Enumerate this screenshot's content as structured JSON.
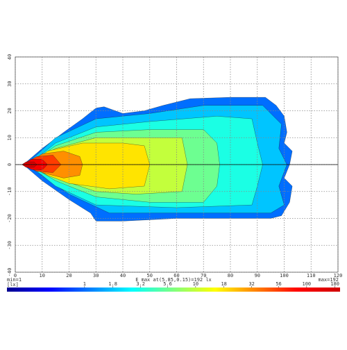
{
  "chart_data": {
    "type": "contour",
    "xlim": [
      0,
      120
    ],
    "ylim": [
      -40,
      40
    ],
    "xticks": [
      0,
      10,
      20,
      30,
      40,
      50,
      60,
      70,
      80,
      90,
      100,
      110,
      120
    ],
    "yticks": [
      -40,
      -30,
      -20,
      -10,
      0,
      10,
      20,
      30,
      40
    ],
    "grid": true,
    "min_label": "min=1",
    "unit_label": "[lx]",
    "emax_label": "E max at(5.85,0.15)=192 lx",
    "max_label": "max=192",
    "colorbar": {
      "scale": "log",
      "lim": [
        0.2,
        200
      ],
      "ticks": [
        1,
        1.8,
        3.2,
        5.6,
        10,
        18,
        32,
        56,
        100,
        180
      ],
      "colormap": [
        "#00008f",
        "#0000ff",
        "#007fff",
        "#00ffff",
        "#7fff7f",
        "#ffff00",
        "#ff7f00",
        "#ff0000",
        "#cf0000"
      ]
    },
    "contours": [
      {
        "level": 1,
        "points": [
          [
            3,
            0
          ],
          [
            10,
            6
          ],
          [
            18,
            12
          ],
          [
            25,
            17
          ],
          [
            30,
            21
          ],
          [
            33,
            21.5
          ],
          [
            40,
            19
          ],
          [
            48,
            20
          ],
          [
            55,
            22
          ],
          [
            65,
            24.5
          ],
          [
            80,
            25
          ],
          [
            93,
            25
          ],
          [
            97,
            22
          ],
          [
            100,
            18
          ],
          [
            101,
            12
          ],
          [
            100,
            8
          ],
          [
            103,
            5
          ],
          [
            102,
            0
          ],
          [
            100,
            -5
          ],
          [
            103,
            -8
          ],
          [
            102,
            -14
          ],
          [
            99,
            -19
          ],
          [
            95,
            -20
          ],
          [
            80,
            -20
          ],
          [
            60,
            -20
          ],
          [
            40,
            -21
          ],
          [
            30,
            -21
          ],
          [
            28,
            -18
          ],
          [
            20,
            -13
          ],
          [
            10,
            -6
          ]
        ]
      },
      {
        "level": 1.8,
        "points": [
          [
            4,
            0
          ],
          [
            15,
            10
          ],
          [
            30,
            17
          ],
          [
            50,
            19
          ],
          [
            70,
            22
          ],
          [
            92,
            22
          ],
          [
            99,
            15
          ],
          [
            98,
            6
          ],
          [
            101,
            0
          ],
          [
            98,
            -8
          ],
          [
            100,
            -15
          ],
          [
            95,
            -18
          ],
          [
            60,
            -18
          ],
          [
            35,
            -18
          ],
          [
            20,
            -11
          ]
        ]
      },
      {
        "level": 3.2,
        "points": [
          [
            5,
            0
          ],
          [
            15,
            8
          ],
          [
            30,
            14
          ],
          [
            50,
            16
          ],
          [
            75,
            18
          ],
          [
            88,
            17
          ],
          [
            90,
            8
          ],
          [
            92,
            0
          ],
          [
            90,
            -8
          ],
          [
            88,
            -15
          ],
          [
            60,
            -16
          ],
          [
            30,
            -15
          ],
          [
            15,
            -8
          ]
        ]
      },
      {
        "level": 5.6,
        "points": [
          [
            5,
            0
          ],
          [
            15,
            7
          ],
          [
            30,
            12
          ],
          [
            50,
            13
          ],
          [
            70,
            13
          ],
          [
            75,
            8
          ],
          [
            76,
            0
          ],
          [
            75,
            -8
          ],
          [
            70,
            -14
          ],
          [
            50,
            -14
          ],
          [
            30,
            -12
          ],
          [
            15,
            -6
          ]
        ]
      },
      {
        "level": 10,
        "points": [
          [
            5,
            0
          ],
          [
            15,
            6
          ],
          [
            30,
            10
          ],
          [
            45,
            10
          ],
          [
            62,
            10
          ],
          [
            64,
            0
          ],
          [
            62,
            -10
          ],
          [
            45,
            -11
          ],
          [
            30,
            -10
          ],
          [
            15,
            -5
          ]
        ]
      },
      {
        "level": 18,
        "points": [
          [
            5,
            0
          ],
          [
            12,
            5
          ],
          [
            25,
            8
          ],
          [
            40,
            8
          ],
          [
            48,
            7
          ],
          [
            50,
            0
          ],
          [
            48,
            -8
          ],
          [
            35,
            -9
          ],
          [
            20,
            -7
          ],
          [
            12,
            -4
          ]
        ]
      },
      {
        "level": 32,
        "points": [
          [
            4,
            0
          ],
          [
            10,
            4
          ],
          [
            18,
            5
          ],
          [
            24,
            3
          ],
          [
            25,
            0
          ],
          [
            24,
            -4
          ],
          [
            18,
            -5
          ],
          [
            10,
            -3
          ]
        ]
      },
      {
        "level": 56,
        "points": [
          [
            3,
            0
          ],
          [
            8,
            3
          ],
          [
            14,
            3.5
          ],
          [
            17,
            0
          ],
          [
            14,
            -3
          ],
          [
            8,
            -2.5
          ]
        ]
      },
      {
        "level": 100,
        "points": [
          [
            2.5,
            0
          ],
          [
            6,
            2
          ],
          [
            10,
            2
          ],
          [
            12,
            0
          ],
          [
            10,
            -2
          ],
          [
            6,
            -1.8
          ]
        ]
      },
      {
        "level": 180,
        "points": [
          [
            2.5,
            0
          ],
          [
            4,
            1
          ],
          [
            7,
            1
          ],
          [
            8,
            0
          ],
          [
            7,
            -1
          ],
          [
            4,
            -1
          ]
        ]
      }
    ]
  }
}
